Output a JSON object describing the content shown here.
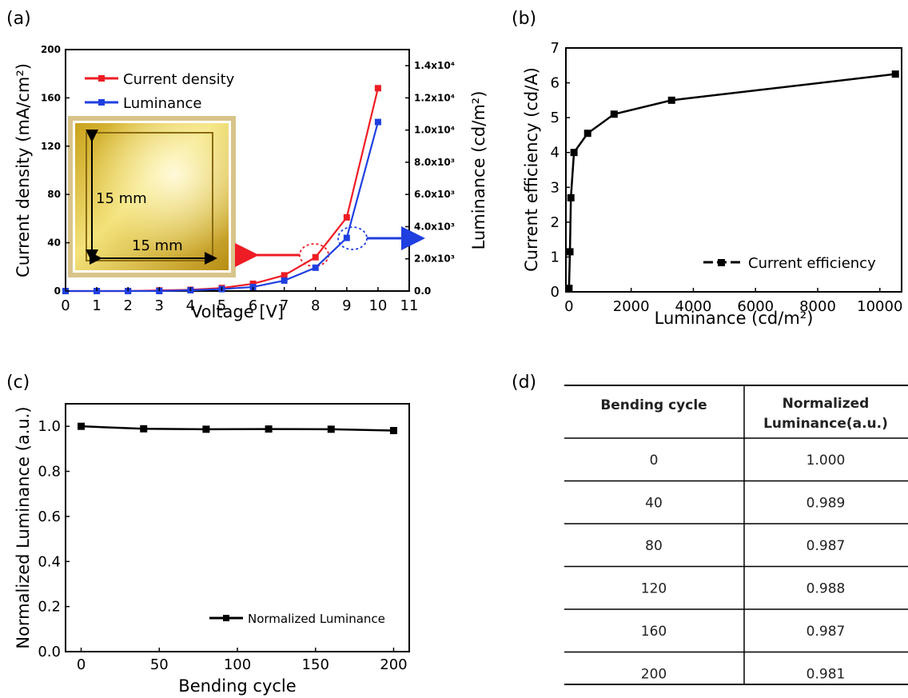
{
  "panel_labels": [
    "(a)",
    "(b)",
    "(c)",
    "(d)"
  ],
  "colors": {
    "current_density": "#ee1c24",
    "luminance": "#1f3fe0",
    "black": "#000000"
  },
  "chart_data": [
    {
      "panel": "(a)",
      "type": "line",
      "xlabel": "Voltage [V]",
      "ylabel": "Current density (mA/cm²)",
      "y2label": "Luminance (cd/m²)",
      "xlim": [
        0,
        11
      ],
      "ylim": [
        0,
        200
      ],
      "y2lim": [
        0,
        15000
      ],
      "x_ticks": [
        "0",
        "1",
        "2",
        "3",
        "4",
        "5",
        "6",
        "7",
        "8",
        "9",
        "10",
        "11"
      ],
      "y_ticks": [
        "0",
        "40",
        "80",
        "120",
        "160",
        "200"
      ],
      "y2_ticks": [
        "0.0",
        "2.0x10³",
        "4.0x10³",
        "6.0x10³",
        "8.0x10³",
        "1.0x10⁴",
        "1.2x10⁴",
        "1.4x10⁴"
      ],
      "inset_labels": [
        "15 mm",
        "15 mm"
      ],
      "series": [
        {
          "name": "Current density",
          "axis": "left",
          "x": [
            0,
            1,
            2,
            3,
            4,
            5,
            6,
            7,
            8,
            9,
            10
          ],
          "values": [
            0,
            0,
            0,
            0.5,
            1,
            2.5,
            6,
            13,
            28,
            61,
            168
          ]
        },
        {
          "name": "Luminance",
          "axis": "right",
          "x": [
            0,
            1,
            2,
            3,
            4,
            5,
            6,
            7,
            8,
            9,
            10
          ],
          "values": [
            0,
            0,
            0,
            0,
            50,
            120,
            250,
            650,
            1450,
            3300,
            10500
          ]
        }
      ]
    },
    {
      "panel": "(b)",
      "type": "line",
      "xlabel": "Luminance (cd/m²)",
      "ylabel": "Current efficiency (cd/A)",
      "xlim": [
        -100,
        10700
      ],
      "ylim": [
        0,
        7
      ],
      "x_ticks": [
        "0",
        "2000",
        "4000",
        "6000",
        "8000",
        "10000"
      ],
      "y_ticks": [
        "0",
        "1",
        "2",
        "3",
        "4",
        "5",
        "6",
        "7"
      ],
      "series": [
        {
          "name": "Current efficiency",
          "x": [
            0,
            30,
            60,
            160,
            600,
            1450,
            3300,
            10500
          ],
          "values": [
            0.1,
            1.15,
            2.7,
            4.0,
            4.55,
            5.1,
            5.5,
            6.25
          ]
        }
      ]
    },
    {
      "panel": "(c)",
      "type": "line",
      "xlabel": "Bending cycle",
      "ylabel": "Normalized Luminance (a.u.)",
      "xlim": [
        -10,
        210
      ],
      "ylim": [
        0,
        1.1
      ],
      "x_ticks": [
        "0",
        "50",
        "100",
        "150",
        "200"
      ],
      "y_ticks": [
        "0.0",
        "0.2",
        "0.4",
        "0.6",
        "0.8",
        "1.0"
      ],
      "series": [
        {
          "name": "Normalized Luminance",
          "x": [
            0,
            40,
            80,
            120,
            160,
            200
          ],
          "values": [
            1.0,
            0.989,
            0.987,
            0.988,
            0.987,
            0.981
          ]
        }
      ]
    },
    {
      "panel": "(d)",
      "type": "table",
      "headers": [
        "Bending cycle",
        "Normalized Luminance(a.u.)"
      ],
      "header_lines": [
        [
          "Bending cycle"
        ],
        [
          "Normalized",
          "Luminance(a.u.)"
        ]
      ],
      "rows": [
        [
          "0",
          "1.000"
        ],
        [
          "40",
          "0.989"
        ],
        [
          "80",
          "0.987"
        ],
        [
          "120",
          "0.988"
        ],
        [
          "160",
          "0.987"
        ],
        [
          "200",
          "0.981"
        ]
      ]
    }
  ]
}
